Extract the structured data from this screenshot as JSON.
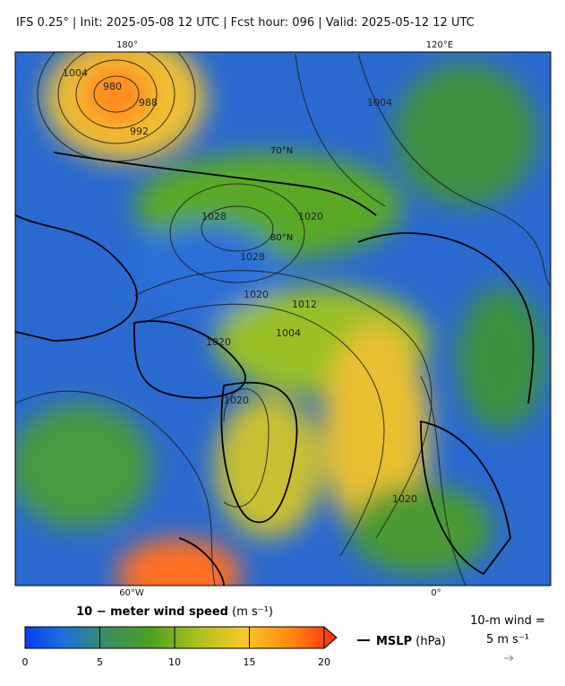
{
  "header": {
    "title": "IFS 0.25°  |  Init: 2025-05-08 12 UTC  |  Fcst hour: 096  |  Valid: 2025-05-12 12 UTC"
  },
  "map": {
    "grid_labels": [
      "180°",
      "120°E",
      "60°W",
      "0°",
      "70°N",
      "80°N"
    ],
    "contour_labels": [
      "1004",
      "980",
      "988",
      "992",
      "1004",
      "1028",
      "1028",
      "1020",
      "1020",
      "1012",
      "1004",
      "1020",
      "1020",
      "1020"
    ]
  },
  "colorbar": {
    "label": "10 − meter wind speed",
    "unit": "(m s⁻¹)",
    "lim": [
      0,
      20
    ],
    "ticks": [
      0,
      5,
      10,
      15,
      20
    ]
  },
  "legend": {
    "line_label": "MSLP",
    "line_unit": "(hPa)",
    "wind_label": "10-m wind =",
    "wind_value": "5 m s⁻¹"
  }
}
